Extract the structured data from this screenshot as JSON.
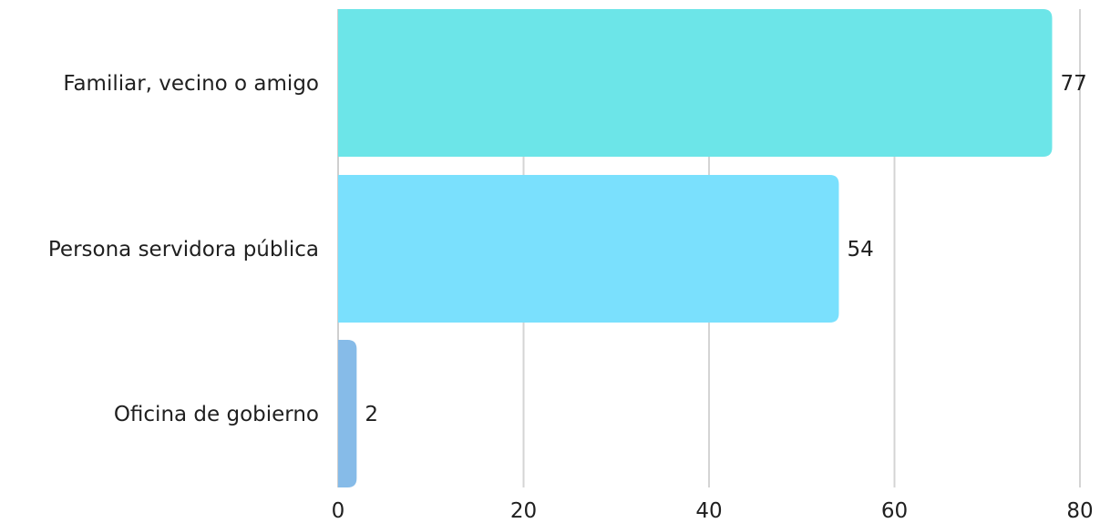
{
  "chart_data": {
    "type": "bar",
    "orientation": "horizontal",
    "categories": [
      "Familiar, vecino o amigo",
      "Persona servidora pública",
      "Oficina de gobierno"
    ],
    "values": [
      77,
      54,
      2
    ],
    "colors": [
      "#6ce5e8",
      "#7ae0fd",
      "#86bbe8"
    ],
    "xticks": [
      "0",
      "20",
      "40",
      "60",
      "80"
    ],
    "xlim": [
      0,
      80
    ],
    "grid": true,
    "legend": false,
    "data_labels": [
      "77",
      "54",
      "2"
    ]
  }
}
